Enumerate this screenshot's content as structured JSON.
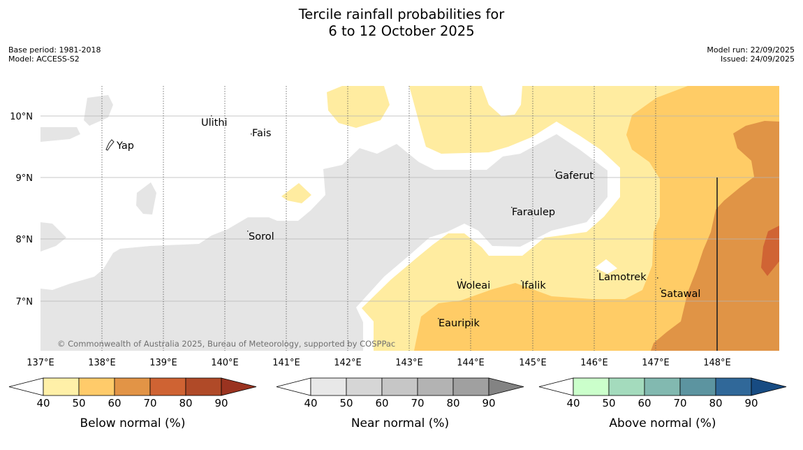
{
  "title_line1": "Tercile rainfall probabilities for",
  "title_line2": "6 to 12 October 2025",
  "meta_left": [
    "Base period: 1981-2018",
    "Model: ACCESS-S2"
  ],
  "meta_right": [
    "Model run: 22/09/2025",
    "Issued: 24/09/2025"
  ],
  "copyright": "© Commonwealth of Australia 2025, Bureau of Meteorology, supported by COSPPac",
  "lat_labels": [
    "10°N",
    "9°N",
    "8°N",
    "7°N"
  ],
  "lon_labels": [
    "137°E",
    "138°E",
    "139°E",
    "140°E",
    "141°E",
    "142°E",
    "143°E",
    "144°E",
    "145°E",
    "146°E",
    "147°E",
    "148°E"
  ],
  "places": [
    "Ulithi",
    "Fais",
    "Yap",
    "Gaferut",
    "Faraulep",
    "Sorol",
    "Lamotrek",
    "Woleai",
    "Ifalik",
    "Satawal",
    "Eauripik"
  ],
  "colorbars": [
    {
      "label": "Below normal (%)",
      "ticks": [
        "40",
        "50",
        "60",
        "70",
        "80",
        "90"
      ],
      "colors": [
        "#fff0a8",
        "#ffcb6a",
        "#e29446",
        "#cf6333",
        "#b04a28"
      ],
      "tip": "#9a3320"
    },
    {
      "label": "Near normal (%)",
      "ticks": [
        "40",
        "50",
        "60",
        "70",
        "80",
        "90"
      ],
      "colors": [
        "#e8e8e8",
        "#d6d6d6",
        "#c6c6c6",
        "#b3b3b3",
        "#a0a0a0"
      ],
      "tip": "#838383"
    },
    {
      "label": "Above normal (%)",
      "ticks": [
        "40",
        "50",
        "60",
        "70",
        "80",
        "90"
      ],
      "colors": [
        "#cbffcb",
        "#a4dbbd",
        "#82b9b0",
        "#5c94a0",
        "#306899"
      ],
      "tip": "#174b82"
    }
  ],
  "palette": {
    "bn1": "#ffeca0",
    "bn2": "#ffcc66",
    "bn3": "#e09446",
    "bn4": "#d06434",
    "nn1": "#e5e5e5"
  }
}
